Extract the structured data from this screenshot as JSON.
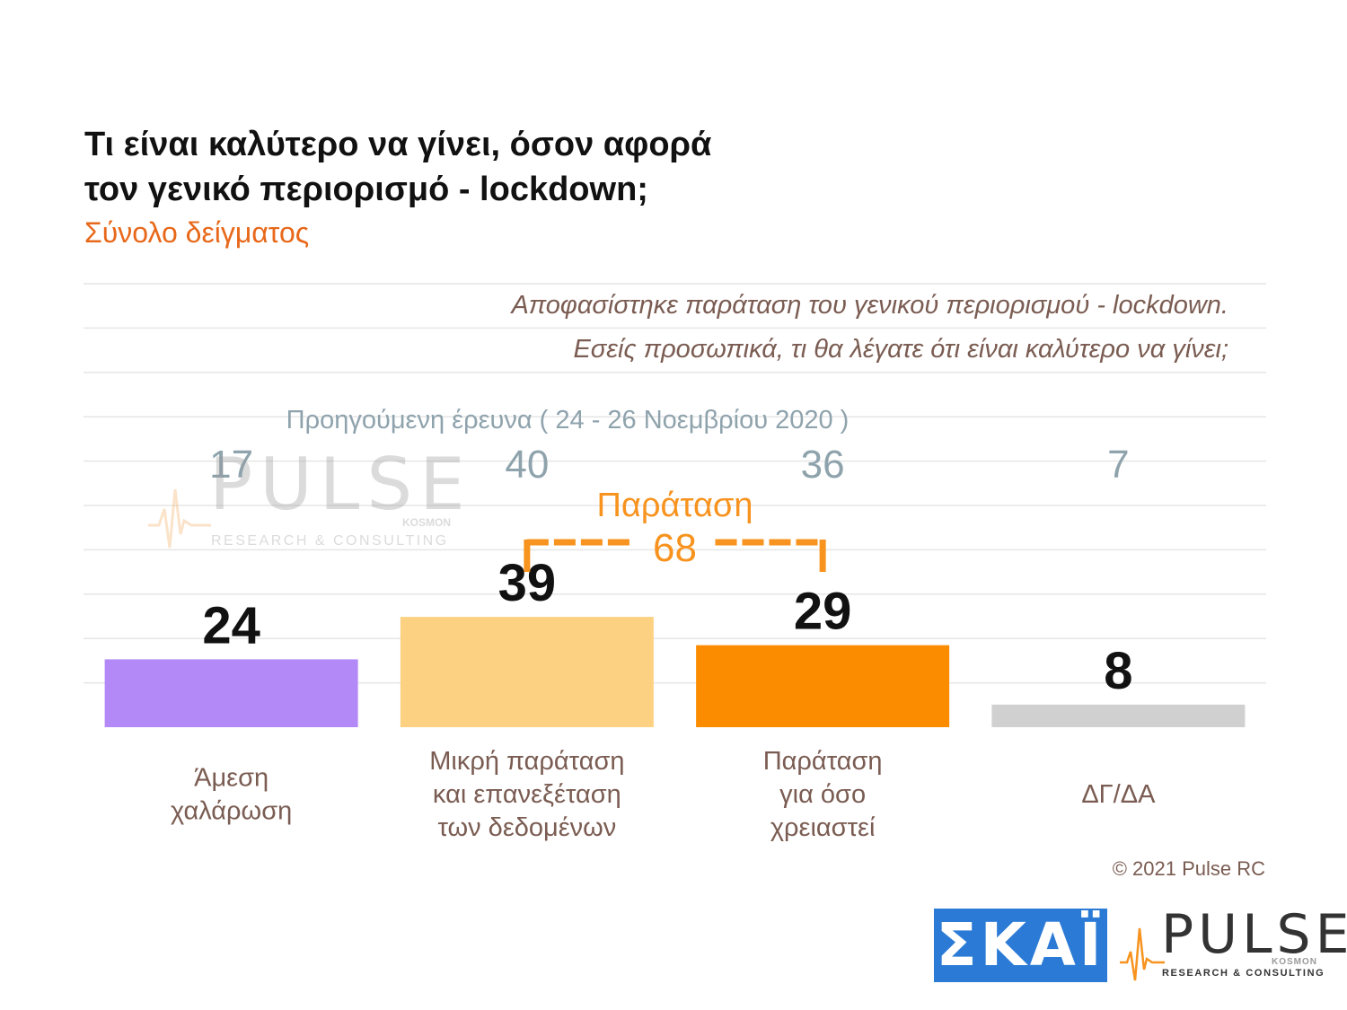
{
  "title_lines": [
    "Τι είναι καλύτερο να γίνει, όσον αφορά",
    "τον γενικό περιορισμό - lockdown;"
  ],
  "subtitle": "Σύνολο δείγματος",
  "question_lines": [
    "Αποφασίστηκε παράταση του γενικού περιορισμού - lockdown.",
    "Εσείς προσωπικά, τι θα λέγατε ότι είναι καλύτερο να γίνει;"
  ],
  "copyright": "© 2021 Pulse RC",
  "logos": {
    "skai": "ΣΚΑΪ",
    "pulse": "PULSE",
    "kosmon": "KOSMON",
    "research": "RESEARCH & CONSULTING"
  },
  "colors": {
    "title": "#111111",
    "subtitle": "#e8681a",
    "question": "#7a5c52",
    "category_label": "#7a5c52",
    "previous": "#8fa3ad",
    "bracket": "#f7931e",
    "value_label": "#111111",
    "gridline": "#e6e6e6"
  },
  "chart_data": {
    "type": "bar",
    "categories": [
      "Άμεση\nχαλάρωση",
      "Μικρή παράταση\nκαι επανεξέταση\nτων δεδομένων",
      "Παράταση\nγια όσο\nχρειαστεί",
      "ΔΓ/ΔΑ"
    ],
    "values": [
      24,
      39,
      29,
      8
    ],
    "bar_colors": [
      "#b388f7",
      "#fdd182",
      "#fb8c00",
      "#d0d0d0"
    ],
    "ylim": [
      0,
      100
    ],
    "grid": true,
    "previous_survey": {
      "label": "Προηγούμενη έρευνα  ( 24 - 26  Νοεμβρίου  2020 )",
      "values": [
        17,
        40,
        36,
        7
      ]
    },
    "bracket": {
      "label": "Παράταση",
      "value": 68,
      "spans": [
        1,
        2
      ]
    }
  }
}
